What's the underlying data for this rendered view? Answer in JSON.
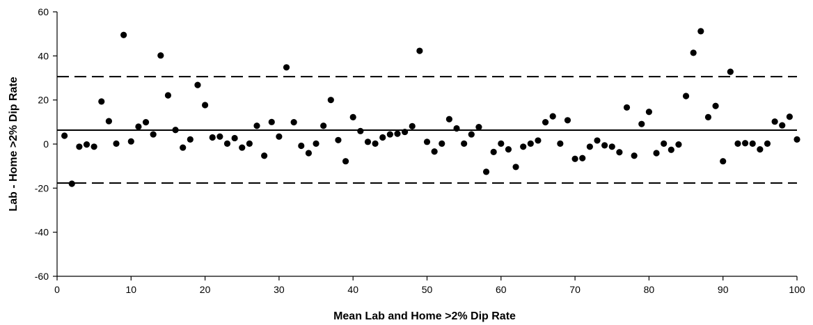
{
  "chart_data": {
    "type": "scatter",
    "title": "",
    "xlabel": "Mean Lab and Home >2% Dip Rate",
    "ylabel": "Lab - Home >2% Dip Rate",
    "xlim": [
      0,
      100
    ],
    "ylim": [
      -60,
      60
    ],
    "x_ticks": [
      "0",
      "10",
      "20",
      "30",
      "40",
      "50",
      "60",
      "70",
      "80",
      "90",
      "100"
    ],
    "y_ticks": [
      "-60",
      "-40",
      "-20",
      "0",
      "20",
      "40",
      "60"
    ],
    "grid": false,
    "legend": "none",
    "marker_color": "#000000",
    "reference_lines": [
      {
        "role": "mean",
        "y": 6.3,
        "style": "solid"
      },
      {
        "role": "upper_limit",
        "y": 30.6,
        "style": "dashed"
      },
      {
        "role": "lower_limit",
        "y": -17.7,
        "style": "dashed"
      }
    ],
    "points": [
      {
        "x": 1,
        "y": 3.8
      },
      {
        "x": 2,
        "y": -18
      },
      {
        "x": 3,
        "y": -1.2
      },
      {
        "x": 4,
        "y": -0.2
      },
      {
        "x": 5,
        "y": -1.2
      },
      {
        "x": 6,
        "y": 19.3
      },
      {
        "x": 7,
        "y": 10.4
      },
      {
        "x": 8,
        "y": 0.2
      },
      {
        "x": 9,
        "y": 49.5
      },
      {
        "x": 10,
        "y": 1.2
      },
      {
        "x": 11,
        "y": 7.9
      },
      {
        "x": 12,
        "y": 9.9
      },
      {
        "x": 13,
        "y": 4.4
      },
      {
        "x": 14,
        "y": 40.2
      },
      {
        "x": 15,
        "y": 22.1
      },
      {
        "x": 16,
        "y": 6.4
      },
      {
        "x": 17,
        "y": -1.6
      },
      {
        "x": 18,
        "y": 2.1
      },
      {
        "x": 19,
        "y": 26.8
      },
      {
        "x": 20,
        "y": 17.7
      },
      {
        "x": 21,
        "y": 3
      },
      {
        "x": 22,
        "y": 3.4
      },
      {
        "x": 23,
        "y": 0.2
      },
      {
        "x": 24,
        "y": 2.7
      },
      {
        "x": 25,
        "y": -1.6
      },
      {
        "x": 26,
        "y": 0.2
      },
      {
        "x": 27,
        "y": 8.3
      },
      {
        "x": 28,
        "y": -5.3
      },
      {
        "x": 29,
        "y": 10
      },
      {
        "x": 30,
        "y": 3.4
      },
      {
        "x": 31,
        "y": 34.8
      },
      {
        "x": 32,
        "y": 9.9
      },
      {
        "x": 33,
        "y": -0.8
      },
      {
        "x": 34,
        "y": -4.1
      },
      {
        "x": 35,
        "y": 0.2
      },
      {
        "x": 36,
        "y": 8.3
      },
      {
        "x": 37,
        "y": 20
      },
      {
        "x": 38,
        "y": 1.8
      },
      {
        "x": 39,
        "y": -7.8
      },
      {
        "x": 40,
        "y": 12.2
      },
      {
        "x": 41,
        "y": 5.9
      },
      {
        "x": 42,
        "y": 1
      },
      {
        "x": 43,
        "y": 0.2
      },
      {
        "x": 44,
        "y": 3
      },
      {
        "x": 45,
        "y": 4.4
      },
      {
        "x": 46,
        "y": 4.7
      },
      {
        "x": 47,
        "y": 5.5
      },
      {
        "x": 48,
        "y": 8.1
      },
      {
        "x": 49,
        "y": 42.3
      },
      {
        "x": 50,
        "y": 1
      },
      {
        "x": 51,
        "y": -3.4
      },
      {
        "x": 52,
        "y": 0.2
      },
      {
        "x": 53,
        "y": 11.3
      },
      {
        "x": 54,
        "y": 7.1
      },
      {
        "x": 55,
        "y": 0.2
      },
      {
        "x": 56,
        "y": 4.4
      },
      {
        "x": 57,
        "y": 7.7
      },
      {
        "x": 58,
        "y": -12.6
      },
      {
        "x": 59,
        "y": -3.6
      },
      {
        "x": 60,
        "y": 0.2
      },
      {
        "x": 61,
        "y": -2.4
      },
      {
        "x": 62,
        "y": -10.4
      },
      {
        "x": 63,
        "y": -1.2
      },
      {
        "x": 64,
        "y": 0.2
      },
      {
        "x": 65,
        "y": 1.6
      },
      {
        "x": 66,
        "y": 9.9
      },
      {
        "x": 67,
        "y": 12.6
      },
      {
        "x": 68,
        "y": 0.2
      },
      {
        "x": 69,
        "y": 10.8
      },
      {
        "x": 70,
        "y": -6.7
      },
      {
        "x": 71,
        "y": -6.4
      },
      {
        "x": 72,
        "y": -1.2
      },
      {
        "x": 73,
        "y": 1.6
      },
      {
        "x": 74,
        "y": -0.6
      },
      {
        "x": 75,
        "y": -1.2
      },
      {
        "x": 76,
        "y": -3.7
      },
      {
        "x": 77,
        "y": 16.6
      },
      {
        "x": 78,
        "y": -5.3
      },
      {
        "x": 79,
        "y": 9.1
      },
      {
        "x": 80,
        "y": 14.6
      },
      {
        "x": 81,
        "y": -4.1
      },
      {
        "x": 82,
        "y": 0.2
      },
      {
        "x": 83,
        "y": -2.6
      },
      {
        "x": 84,
        "y": -0.2
      },
      {
        "x": 85,
        "y": 21.8
      },
      {
        "x": 86,
        "y": 41.4
      },
      {
        "x": 87,
        "y": 51.2
      },
      {
        "x": 88,
        "y": 12.2
      },
      {
        "x": 89,
        "y": 17.3
      },
      {
        "x": 90,
        "y": -7.8
      },
      {
        "x": 91,
        "y": 32.8
      },
      {
        "x": 92,
        "y": 0.2
      },
      {
        "x": 93,
        "y": 0.4
      },
      {
        "x": 94,
        "y": 0.2
      },
      {
        "x": 95,
        "y": -2.4
      },
      {
        "x": 96,
        "y": 0.2
      },
      {
        "x": 97,
        "y": 10.2
      },
      {
        "x": 98,
        "y": 8.5
      },
      {
        "x": 99,
        "y": 12.4
      },
      {
        "x": 100,
        "y": 2.1
      }
    ]
  }
}
